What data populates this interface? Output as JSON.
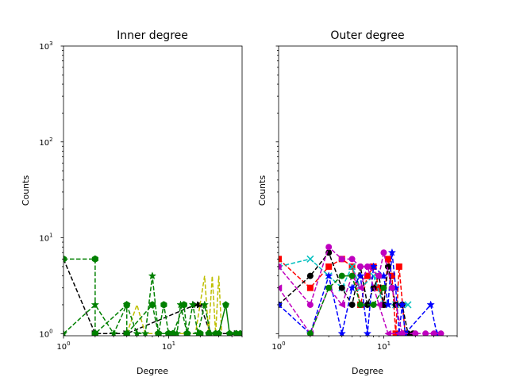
{
  "chart_data": [
    {
      "type": "line",
      "title": "Inner degree",
      "xlabel": "Degree",
      "ylabel": "Counts",
      "xscale": "log",
      "yscale": "log",
      "xlim": [
        1,
        50
      ],
      "ylim": [
        0.95,
        1000
      ],
      "ytick_labels": [
        "10",
        "10",
        "10",
        "10"
      ],
      "ytick_exponents": [
        "0",
        "1",
        "2",
        "3"
      ],
      "xtick_labels": [
        "10",
        "10"
      ],
      "xtick_exponents": [
        "0",
        "1"
      ],
      "show_yticklabels": true,
      "series": [
        {
          "color": "#000000",
          "marker": "triangle-right",
          "linestyle": "dashed",
          "points": [
            [
              1,
              6
            ],
            [
              2,
              1
            ],
            [
              4,
              1
            ],
            [
              18,
              2
            ],
            [
              20,
              2
            ],
            [
              25,
              1
            ],
            [
              30,
              1
            ],
            [
              40,
              1
            ],
            [
              45,
              1
            ]
          ]
        },
        {
          "color": "#bfbf00",
          "marker": "none",
          "linestyle": "dashed",
          "points": [
            [
              4,
              1
            ],
            [
              5,
              2
            ],
            [
              6,
              1
            ],
            [
              8,
              1
            ],
            [
              12,
              1
            ],
            [
              18,
              1
            ],
            [
              22,
              4
            ],
            [
              24,
              1
            ],
            [
              26,
              4
            ],
            [
              28,
              1
            ],
            [
              30,
              4
            ],
            [
              32,
              1
            ]
          ]
        },
        {
          "color": "#008000",
          "marker": "hexagon",
          "linestyle": "dashed",
          "points": [
            [
              1,
              6
            ],
            [
              2,
              6
            ],
            [
              2,
              1
            ],
            [
              4,
              2
            ],
            [
              4,
              1
            ],
            [
              7,
              2
            ],
            [
              8,
              1
            ],
            [
              9,
              2
            ],
            [
              10,
              1
            ],
            [
              11,
              1
            ],
            [
              14,
              2
            ],
            [
              15,
              1
            ],
            [
              20,
              1
            ]
          ]
        },
        {
          "color": "#008000",
          "marker": "star",
          "linestyle": "dashed",
          "points": [
            [
              1,
              1
            ],
            [
              2,
              2
            ],
            [
              3,
              1
            ],
            [
              4,
              2
            ],
            [
              5,
              1
            ],
            [
              6,
              1
            ],
            [
              7,
              4
            ],
            [
              8,
              1
            ],
            [
              10,
              1
            ],
            [
              12,
              1
            ],
            [
              13,
              2
            ],
            [
              15,
              1
            ],
            [
              17,
              2
            ],
            [
              19,
              1
            ],
            [
              22,
              2
            ],
            [
              25,
              1
            ]
          ]
        },
        {
          "color": "#008000",
          "marker": "pentagon",
          "linestyle": "solid",
          "points": [
            [
              24,
              1
            ],
            [
              28,
              1
            ],
            [
              30,
              1
            ],
            [
              35,
              2
            ],
            [
              38,
              1
            ],
            [
              44,
              1
            ],
            [
              48,
              1
            ]
          ]
        }
      ]
    },
    {
      "type": "line",
      "title": "Outer degree",
      "xlabel": "Degree",
      "ylabel": "Counts",
      "xscale": "log",
      "yscale": "log",
      "xlim": [
        1,
        50
      ],
      "ylim": [
        0.95,
        1000
      ],
      "xtick_labels": [
        "10",
        "10"
      ],
      "xtick_exponents": [
        "0",
        "1"
      ],
      "show_yticklabels": false,
      "series": [
        {
          "color": "#ff0000",
          "marker": "square",
          "linestyle": "dashed",
          "points": [
            [
              1,
              6
            ],
            [
              2,
              3
            ],
            [
              3,
              5
            ],
            [
              4,
              6
            ],
            [
              5,
              5
            ],
            [
              6,
              2
            ],
            [
              7,
              4
            ],
            [
              8,
              5
            ],
            [
              9,
              3
            ],
            [
              10,
              2
            ],
            [
              11,
              6
            ],
            [
              12,
              4
            ],
            [
              13,
              1
            ],
            [
              14,
              5
            ],
            [
              16,
              1
            ]
          ]
        },
        {
          "color": "#00bfbf",
          "marker": "x",
          "linestyle": "dashed",
          "points": [
            [
              1,
              5
            ],
            [
              2,
              6
            ],
            [
              3,
              4
            ],
            [
              4,
              3
            ],
            [
              5,
              5
            ],
            [
              6,
              3
            ],
            [
              8,
              4
            ],
            [
              10,
              2
            ],
            [
              13,
              2
            ],
            [
              17,
              2
            ]
          ]
        },
        {
          "color": "#000000",
          "marker": "circle",
          "linestyle": "dashed",
          "points": [
            [
              1,
              2
            ],
            [
              2,
              4
            ],
            [
              3,
              7
            ],
            [
              4,
              3
            ],
            [
              5,
              2
            ],
            [
              6,
              5
            ],
            [
              7,
              2
            ],
            [
              8,
              3
            ],
            [
              9,
              4
            ],
            [
              10,
              2
            ],
            [
              11,
              5
            ],
            [
              12,
              3
            ],
            [
              13,
              2
            ],
            [
              15,
              2
            ],
            [
              17,
              1
            ],
            [
              19,
              1
            ]
          ]
        },
        {
          "color": "#0000ff",
          "marker": "star",
          "linestyle": "dashed",
          "points": [
            [
              1,
              2
            ],
            [
              2,
              1
            ],
            [
              3,
              4
            ],
            [
              4,
              1
            ],
            [
              5,
              3
            ],
            [
              6,
              4
            ],
            [
              7,
              1
            ],
            [
              8,
              5
            ],
            [
              10,
              4
            ],
            [
              11,
              2
            ],
            [
              12,
              7
            ],
            [
              13,
              3
            ],
            [
              14,
              1
            ],
            [
              15,
              2
            ],
            [
              16,
              1
            ],
            [
              28,
              2
            ],
            [
              32,
              1
            ]
          ]
        },
        {
          "color": "#bf00bf",
          "marker": "circle",
          "linestyle": "dashed",
          "points": [
            [
              1,
              5
            ],
            [
              2,
              2
            ],
            [
              3,
              8
            ],
            [
              4,
              6
            ],
            [
              5,
              6
            ],
            [
              6,
              5
            ],
            [
              7,
              5
            ],
            [
              9,
              4
            ],
            [
              10,
              7
            ],
            [
              12,
              3
            ],
            [
              15,
              1
            ],
            [
              20,
              1
            ],
            [
              25,
              1
            ],
            [
              30,
              1
            ],
            [
              35,
              1
            ]
          ]
        },
        {
          "color": "#bf00bf",
          "marker": "triangle-left",
          "linestyle": "dashed",
          "points": [
            [
              1,
              3
            ],
            [
              2,
              1
            ],
            [
              3,
              3
            ],
            [
              4,
              2
            ],
            [
              5,
              4
            ],
            [
              6,
              3
            ],
            [
              7,
              5
            ],
            [
              9,
              2
            ],
            [
              11,
              1
            ],
            [
              14,
              1
            ]
          ]
        },
        {
          "color": "#008000",
          "marker": "circle",
          "linestyle": "dashed",
          "points": [
            [
              2,
              1
            ],
            [
              3,
              3
            ],
            [
              4,
              4
            ],
            [
              5,
              4
            ],
            [
              6,
              2
            ],
            [
              8,
              2
            ],
            [
              10,
              3
            ]
          ]
        }
      ]
    }
  ]
}
